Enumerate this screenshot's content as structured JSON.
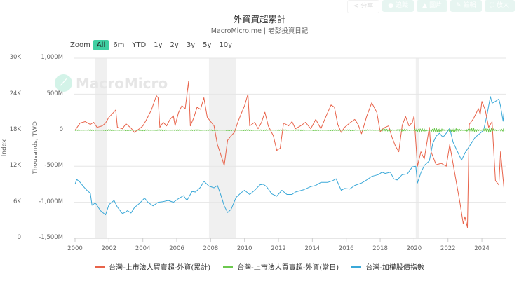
{
  "toolbar": {
    "buttons": [
      {
        "label": "分享",
        "icon": "share-icon"
      },
      {
        "label": "追蹤",
        "icon": "follow-icon"
      },
      {
        "label": "圖片",
        "icon": "download-icon"
      },
      {
        "label": "編輯",
        "icon": "edit-icon"
      },
      {
        "label": "放大",
        "icon": "expand-icon"
      }
    ]
  },
  "header": {
    "title": "外資買超累計",
    "subtitle": "MacroMicro.me | 老彭投資日記"
  },
  "zoom": {
    "label": "Zoom",
    "options": [
      "All",
      "6m",
      "YTD",
      "1y",
      "2y",
      "3y",
      "5y",
      "10y"
    ],
    "active": "All"
  },
  "watermark": {
    "text": "MacroMicro"
  },
  "colors": {
    "cumulative": "#e8634a",
    "daily": "#6cc84e",
    "index": "#3aa8d8",
    "recession": "#f0f0f0",
    "grid": "#e6e6e6",
    "zoom_active": "#3fcfa2"
  },
  "chart_data": {
    "type": "line",
    "title": "外資買超累計",
    "subtitle": "MacroMicro.me | 老彭投資日記",
    "xlabel": "",
    "x_ticks": [
      "2000",
      "2002",
      "2004",
      "2006",
      "2008",
      "2010",
      "2012",
      "2014",
      "2016",
      "2018",
      "2020",
      "2022",
      "2024"
    ],
    "xlim": [
      2000,
      2025.4
    ],
    "y_left_outer": {
      "label": "Index",
      "ticks": [
        "30K",
        "24K",
        "18K",
        "12K",
        "6K",
        "0"
      ],
      "range": [
        0,
        30000
      ]
    },
    "y_left_inner": {
      "label": "Thousands, TWD",
      "ticks": [
        "1,000M",
        "500M",
        "0",
        "-500M",
        "-1,000M",
        "-1,500M"
      ],
      "range": [
        -1500,
        1000
      ],
      "unit": "M"
    },
    "grid": true,
    "legend_position": "bottom",
    "shaded_periods": [
      [
        2001.2,
        2001.9
      ],
      [
        2007.9,
        2009.5
      ],
      [
        2020.1,
        2020.3
      ]
    ],
    "series": [
      {
        "name": "台灣-上市法人買賣超-外資(累計)",
        "axis": "Thousands, TWD",
        "color": "#e8634a",
        "points": [
          [
            2000.0,
            0
          ],
          [
            2000.3,
            100
          ],
          [
            2000.6,
            120
          ],
          [
            2000.9,
            80
          ],
          [
            2001.1,
            110
          ],
          [
            2001.3,
            40
          ],
          [
            2001.6,
            60
          ],
          [
            2001.8,
            100
          ],
          [
            2002.0,
            180
          ],
          [
            2002.2,
            230
          ],
          [
            2002.4,
            280
          ],
          [
            2002.5,
            40
          ],
          [
            2002.8,
            20
          ],
          [
            2003.0,
            90
          ],
          [
            2003.3,
            30
          ],
          [
            2003.5,
            -30
          ],
          [
            2003.8,
            20
          ],
          [
            2004.0,
            60
          ],
          [
            2004.2,
            140
          ],
          [
            2004.5,
            280
          ],
          [
            2004.8,
            480
          ],
          [
            2004.9,
            450
          ],
          [
            2005.0,
            40
          ],
          [
            2005.2,
            110
          ],
          [
            2005.4,
            60
          ],
          [
            2005.6,
            150
          ],
          [
            2005.8,
            200
          ],
          [
            2005.9,
            60
          ],
          [
            2006.1,
            240
          ],
          [
            2006.3,
            340
          ],
          [
            2006.5,
            300
          ],
          [
            2006.7,
            680
          ],
          [
            2006.8,
            60
          ],
          [
            2007.0,
            170
          ],
          [
            2007.2,
            320
          ],
          [
            2007.4,
            290
          ],
          [
            2007.6,
            450
          ],
          [
            2007.8,
            180
          ],
          [
            2008.0,
            120
          ],
          [
            2008.2,
            60
          ],
          [
            2008.4,
            -200
          ],
          [
            2008.6,
            -340
          ],
          [
            2008.8,
            -490
          ],
          [
            2009.0,
            -140
          ],
          [
            2009.2,
            -80
          ],
          [
            2009.4,
            -30
          ],
          [
            2009.6,
            110
          ],
          [
            2009.8,
            230
          ],
          [
            2010.0,
            340
          ],
          [
            2010.2,
            500
          ],
          [
            2010.3,
            60
          ],
          [
            2010.6,
            110
          ],
          [
            2010.8,
            20
          ],
          [
            2011.0,
            110
          ],
          [
            2011.2,
            250
          ],
          [
            2011.4,
            60
          ],
          [
            2011.7,
            -80
          ],
          [
            2011.9,
            -280
          ],
          [
            2012.1,
            -250
          ],
          [
            2012.3,
            100
          ],
          [
            2012.6,
            60
          ],
          [
            2012.8,
            120
          ],
          [
            2013.0,
            20
          ],
          [
            2013.3,
            60
          ],
          [
            2013.6,
            110
          ],
          [
            2013.9,
            20
          ],
          [
            2014.2,
            150
          ],
          [
            2014.5,
            20
          ],
          [
            2014.8,
            190
          ],
          [
            2015.1,
            350
          ],
          [
            2015.3,
            320
          ],
          [
            2015.5,
            80
          ],
          [
            2015.7,
            -30
          ],
          [
            2015.9,
            40
          ],
          [
            2016.2,
            100
          ],
          [
            2016.5,
            150
          ],
          [
            2016.7,
            80
          ],
          [
            2016.9,
            -50
          ],
          [
            2017.2,
            190
          ],
          [
            2017.5,
            380
          ],
          [
            2017.8,
            250
          ],
          [
            2018.0,
            -20
          ],
          [
            2018.2,
            30
          ],
          [
            2018.5,
            60
          ],
          [
            2018.7,
            -100
          ],
          [
            2018.9,
            -220
          ],
          [
            2019.1,
            -300
          ],
          [
            2019.3,
            70
          ],
          [
            2019.5,
            190
          ],
          [
            2019.7,
            60
          ],
          [
            2019.9,
            110
          ],
          [
            2020.0,
            200
          ],
          [
            2020.2,
            -500
          ],
          [
            2020.4,
            -300
          ],
          [
            2020.6,
            -400
          ],
          [
            2020.9,
            40
          ],
          [
            2021.0,
            -300
          ],
          [
            2021.3,
            -480
          ],
          [
            2021.6,
            -460
          ],
          [
            2021.9,
            -500
          ],
          [
            2022.1,
            -200
          ],
          [
            2022.4,
            -600
          ],
          [
            2022.7,
            -1000
          ],
          [
            2022.9,
            -1300
          ],
          [
            2023.0,
            -1200
          ],
          [
            2023.15,
            -1350
          ],
          [
            2023.25,
            80
          ],
          [
            2023.5,
            160
          ],
          [
            2023.8,
            300
          ],
          [
            2023.9,
            220
          ],
          [
            2024.0,
            400
          ],
          [
            2024.2,
            280
          ],
          [
            2024.4,
            40
          ],
          [
            2024.6,
            120
          ],
          [
            2024.8,
            -700
          ],
          [
            2025.0,
            -760
          ],
          [
            2025.1,
            -300
          ],
          [
            2025.3,
            -800
          ]
        ]
      },
      {
        "name": "台灣-上市法人買賣超-外資(當日)",
        "axis": "Thousands, TWD",
        "color": "#6cc84e",
        "points": [
          [
            2000.0,
            0
          ],
          [
            2005.0,
            -5
          ],
          [
            2010.0,
            5
          ],
          [
            2015.0,
            0
          ],
          [
            2018.0,
            -10
          ],
          [
            2019.0,
            0
          ],
          [
            2020.0,
            -15
          ],
          [
            2021.0,
            10
          ],
          [
            2022.0,
            -10
          ],
          [
            2023.0,
            15
          ],
          [
            2024.0,
            -20
          ],
          [
            2025.3,
            -30
          ]
        ]
      },
      {
        "name": "台灣-加權股價指數",
        "axis": "Index",
        "color": "#3aa8d8",
        "points": [
          [
            2000.0,
            9000
          ],
          [
            2000.1,
            9800
          ],
          [
            2000.3,
            9300
          ],
          [
            2000.5,
            8600
          ],
          [
            2000.7,
            8000
          ],
          [
            2000.9,
            7500
          ],
          [
            2001.0,
            5500
          ],
          [
            2001.2,
            5900
          ],
          [
            2001.5,
            4600
          ],
          [
            2001.8,
            3900
          ],
          [
            2002.0,
            5600
          ],
          [
            2002.3,
            6300
          ],
          [
            2002.5,
            5200
          ],
          [
            2002.8,
            4100
          ],
          [
            2003.1,
            4600
          ],
          [
            2003.3,
            4200
          ],
          [
            2003.5,
            5100
          ],
          [
            2003.8,
            5800
          ],
          [
            2004.1,
            6700
          ],
          [
            2004.3,
            6000
          ],
          [
            2004.6,
            5400
          ],
          [
            2004.9,
            6000
          ],
          [
            2005.2,
            6100
          ],
          [
            2005.5,
            6300
          ],
          [
            2005.8,
            6000
          ],
          [
            2006.1,
            6600
          ],
          [
            2006.4,
            7100
          ],
          [
            2006.6,
            6300
          ],
          [
            2006.9,
            7800
          ],
          [
            2007.1,
            7700
          ],
          [
            2007.4,
            8500
          ],
          [
            2007.6,
            9500
          ],
          [
            2007.9,
            8700
          ],
          [
            2008.2,
            8400
          ],
          [
            2008.4,
            8800
          ],
          [
            2008.6,
            7200
          ],
          [
            2008.8,
            5400
          ],
          [
            2009.0,
            4300
          ],
          [
            2009.2,
            4800
          ],
          [
            2009.5,
            6800
          ],
          [
            2009.8,
            7600
          ],
          [
            2010.0,
            8000
          ],
          [
            2010.3,
            7300
          ],
          [
            2010.6,
            8000
          ],
          [
            2010.9,
            8900
          ],
          [
            2011.1,
            9000
          ],
          [
            2011.3,
            8600
          ],
          [
            2011.6,
            7400
          ],
          [
            2011.9,
            7000
          ],
          [
            2012.2,
            8000
          ],
          [
            2012.5,
            7300
          ],
          [
            2012.8,
            7300
          ],
          [
            2013.0,
            7700
          ],
          [
            2013.5,
            8100
          ],
          [
            2013.9,
            8600
          ],
          [
            2014.2,
            8800
          ],
          [
            2014.5,
            9300
          ],
          [
            2014.9,
            9300
          ],
          [
            2015.2,
            9600
          ],
          [
            2015.4,
            9900
          ],
          [
            2015.7,
            8000
          ],
          [
            2015.9,
            8300
          ],
          [
            2016.2,
            8200
          ],
          [
            2016.5,
            8800
          ],
          [
            2016.9,
            9200
          ],
          [
            2017.2,
            9700
          ],
          [
            2017.5,
            10300
          ],
          [
            2017.9,
            10600
          ],
          [
            2018.1,
            11000
          ],
          [
            2018.3,
            10800
          ],
          [
            2018.6,
            11000
          ],
          [
            2018.8,
            9900
          ],
          [
            2019.0,
            9700
          ],
          [
            2019.3,
            10600
          ],
          [
            2019.6,
            10700
          ],
          [
            2019.9,
            11900
          ],
          [
            2020.1,
            12000
          ],
          [
            2020.2,
            9200
          ],
          [
            2020.4,
            10900
          ],
          [
            2020.6,
            12100
          ],
          [
            2020.9,
            12900
          ],
          [
            2021.1,
            15800
          ],
          [
            2021.3,
            17000
          ],
          [
            2021.5,
            17500
          ],
          [
            2021.7,
            16800
          ],
          [
            2021.9,
            17500
          ],
          [
            2022.1,
            18300
          ],
          [
            2022.3,
            16000
          ],
          [
            2022.5,
            14800
          ],
          [
            2022.8,
            13000
          ],
          [
            2023.0,
            14200
          ],
          [
            2023.3,
            15500
          ],
          [
            2023.6,
            16800
          ],
          [
            2023.9,
            17500
          ],
          [
            2024.1,
            18000
          ],
          [
            2024.3,
            20500
          ],
          [
            2024.5,
            23600
          ],
          [
            2024.6,
            22500
          ],
          [
            2024.8,
            22800
          ],
          [
            2025.0,
            23200
          ],
          [
            2025.1,
            22000
          ],
          [
            2025.25,
            19500
          ],
          [
            2025.3,
            21000
          ]
        ]
      }
    ]
  },
  "legend": {
    "items": [
      {
        "label": "台灣-上市法人買賣超-外資(累計)",
        "color": "#e8634a"
      },
      {
        "label": "台灣-上市法人買賣超-外資(當日)",
        "color": "#6cc84e"
      },
      {
        "label": "台灣-加權股價指數",
        "color": "#3aa8d8"
      }
    ]
  }
}
